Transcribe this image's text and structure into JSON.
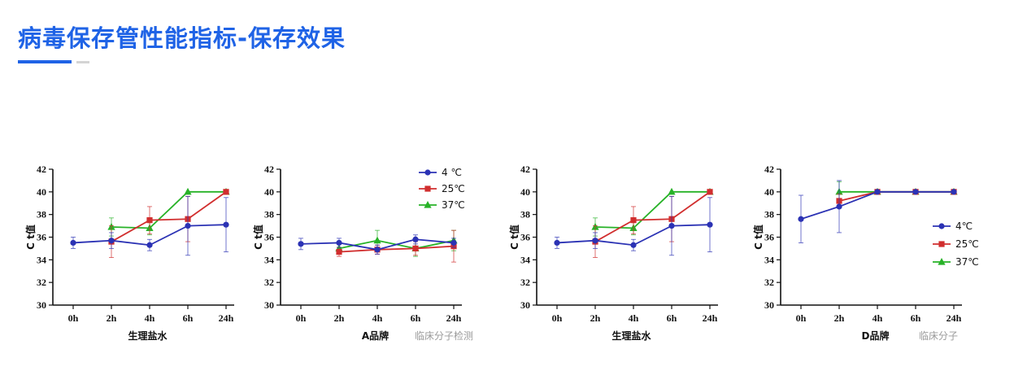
{
  "header": {
    "title": "病毒保存管性能指标-保存效果"
  },
  "colors": {
    "accent": "#1f63e6",
    "s4": "#2b32b4",
    "s25": "#d12e2e",
    "s37": "#27b227"
  },
  "watermarks": [
    "临床分子检测",
    "临床分子"
  ],
  "chart_data": [
    {
      "type": "line",
      "xlabel": "生理盐水",
      "ylabel": "C t值",
      "categories": [
        "0h",
        "2h",
        "4h",
        "6h",
        "24h"
      ],
      "yticks": [
        "30",
        "32",
        "34",
        "36",
        "38",
        "40",
        "42"
      ],
      "ylim": [
        30,
        42
      ],
      "legend": "none",
      "series": [
        {
          "name": "4℃",
          "values": [
            35.5,
            35.7,
            35.3,
            37.0,
            37.1
          ],
          "err": [
            0.5,
            0.7,
            0.5,
            2.6,
            2.4
          ]
        },
        {
          "name": "25℃",
          "values": [
            null,
            35.6,
            37.5,
            37.6,
            40.0
          ],
          "err": [
            0,
            1.4,
            1.2,
            2.0,
            0
          ]
        },
        {
          "name": "37℃",
          "values": [
            null,
            36.9,
            36.8,
            40.0,
            40.0
          ],
          "err": [
            0,
            0.8,
            0.6,
            0,
            0
          ]
        }
      ]
    },
    {
      "type": "line",
      "xlabel": "A品牌",
      "ylabel": "C t值",
      "categories": [
        "0h",
        "2h",
        "4h",
        "6h",
        "24h"
      ],
      "yticks": [
        "30",
        "32",
        "34",
        "36",
        "38",
        "40",
        "42"
      ],
      "ylim": [
        30,
        42
      ],
      "legend": "top-right",
      "series": [
        {
          "name": "4 ℃",
          "values": [
            35.4,
            35.5,
            34.9,
            35.8,
            35.5
          ],
          "err": [
            0.5,
            0.4,
            0.4,
            0.4,
            0.4
          ]
        },
        {
          "name": "25℃",
          "values": [
            null,
            34.7,
            34.9,
            35.0,
            35.2
          ],
          "err": [
            0,
            0.4,
            0.4,
            0.6,
            1.4
          ]
        },
        {
          "name": "37℃",
          "values": [
            null,
            35.0,
            35.7,
            35.0,
            35.7
          ],
          "err": [
            0,
            0.4,
            0.9,
            0.7,
            0.9
          ]
        }
      ]
    },
    {
      "type": "line",
      "xlabel": "生理盐水",
      "ylabel": "C t值",
      "categories": [
        "0h",
        "2h",
        "4h",
        "6h",
        "24h"
      ],
      "yticks": [
        "30",
        "32",
        "34",
        "36",
        "38",
        "40",
        "42"
      ],
      "ylim": [
        30,
        42
      ],
      "legend": "none",
      "series": [
        {
          "name": "4℃",
          "values": [
            35.5,
            35.7,
            35.3,
            37.0,
            37.1
          ],
          "err": [
            0.5,
            0.7,
            0.5,
            2.6,
            2.4
          ]
        },
        {
          "name": "25℃",
          "values": [
            null,
            35.6,
            37.5,
            37.6,
            40.0
          ],
          "err": [
            0,
            1.4,
            1.2,
            2.0,
            0
          ]
        },
        {
          "name": "37℃",
          "values": [
            null,
            36.9,
            36.8,
            40.0,
            40.0
          ],
          "err": [
            0,
            0.8,
            0.6,
            0,
            0
          ]
        }
      ]
    },
    {
      "type": "line",
      "xlabel": "D品牌",
      "ylabel": "C t值",
      "categories": [
        "0h",
        "2h",
        "4h",
        "6h",
        "24h"
      ],
      "yticks": [
        "30",
        "32",
        "34",
        "36",
        "38",
        "40",
        "42"
      ],
      "ylim": [
        30,
        42
      ],
      "legend": "right",
      "series": [
        {
          "name": "4℃",
          "values": [
            37.6,
            38.7,
            40.0,
            40.0,
            40.0
          ],
          "err": [
            2.1,
            2.3,
            0,
            0,
            0
          ]
        },
        {
          "name": "25℃",
          "values": [
            null,
            39.2,
            40.0,
            40.0,
            40.0
          ],
          "err": [
            0,
            0.6,
            0,
            0,
            0
          ]
        },
        {
          "name": "37℃",
          "values": [
            null,
            40.0,
            40.0,
            40.0,
            40.0
          ],
          "err": [
            0,
            0.9,
            0,
            0,
            0
          ]
        }
      ]
    }
  ]
}
